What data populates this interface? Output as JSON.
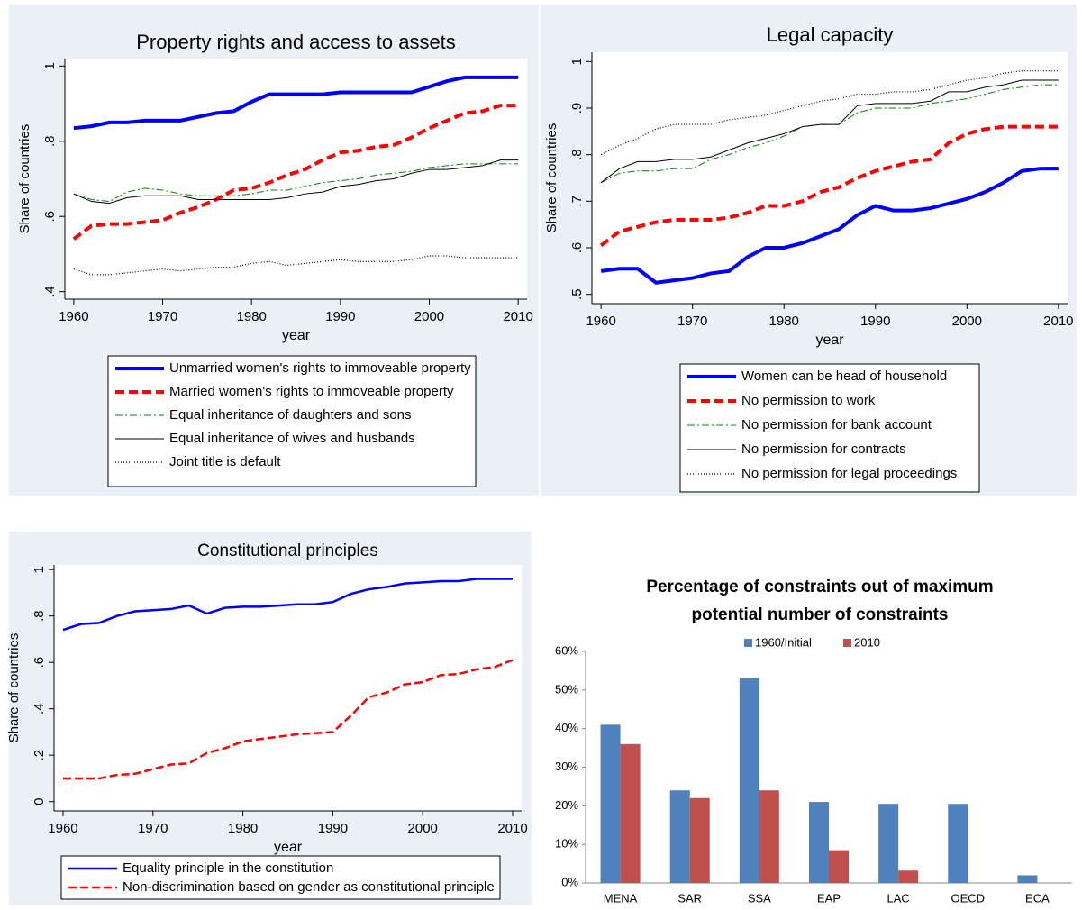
{
  "chart_data": [
    {
      "type": "line",
      "title": "Property rights and access to assets",
      "xlabel": "year",
      "ylabel": "Share of countries",
      "x": [
        1960,
        1962,
        1964,
        1966,
        1968,
        1970,
        1972,
        1974,
        1976,
        1978,
        1980,
        1982,
        1984,
        1986,
        1988,
        1990,
        1992,
        1994,
        1996,
        1998,
        2000,
        2002,
        2004,
        2006,
        2008,
        2010
      ],
      "xlim": [
        1959,
        2011
      ],
      "xticks": [
        1960,
        1970,
        1980,
        1990,
        2000,
        2010
      ],
      "ylim": [
        0.38,
        1.02
      ],
      "yticks": [
        {
          "value": 0.4,
          "label": ".4"
        },
        {
          "value": 0.6,
          "label": ".6"
        },
        {
          "value": 0.8,
          "label": ".8"
        },
        1
      ],
      "series": [
        {
          "name": "Unmarried women's rights to immoveable property",
          "color": "#0000ff",
          "style": "thick",
          "values": [
            0.835,
            0.84,
            0.85,
            0.85,
            0.855,
            0.855,
            0.855,
            0.865,
            0.875,
            0.88,
            0.905,
            0.925,
            0.925,
            0.925,
            0.925,
            0.93,
            0.93,
            0.93,
            0.93,
            0.93,
            0.945,
            0.96,
            0.97,
            0.97,
            0.97,
            0.97
          ]
        },
        {
          "name": "Married women's rights to immoveable property",
          "color": "#ff0000",
          "style": "thick-dashed",
          "values": [
            0.54,
            0.575,
            0.58,
            0.58,
            0.585,
            0.59,
            0.61,
            0.625,
            0.645,
            0.67,
            0.675,
            0.69,
            0.71,
            0.725,
            0.75,
            0.77,
            0.775,
            0.785,
            0.79,
            0.81,
            0.835,
            0.855,
            0.875,
            0.88,
            0.895,
            0.895
          ]
        },
        {
          "name": "Equal inheritance of daughters and sons",
          "color": "#008000",
          "style": "dashdot",
          "values": [
            0.66,
            0.645,
            0.64,
            0.665,
            0.675,
            0.67,
            0.66,
            0.655,
            0.655,
            0.655,
            0.66,
            0.67,
            0.67,
            0.68,
            0.69,
            0.695,
            0.7,
            0.71,
            0.715,
            0.72,
            0.73,
            0.735,
            0.74,
            0.74,
            0.74,
            0.74
          ]
        },
        {
          "name": "Equal inheritance of wives and husbands",
          "color": "#000000",
          "style": "solid",
          "values": [
            0.66,
            0.64,
            0.635,
            0.65,
            0.655,
            0.655,
            0.655,
            0.645,
            0.645,
            0.645,
            0.645,
            0.645,
            0.65,
            0.66,
            0.665,
            0.68,
            0.685,
            0.695,
            0.7,
            0.715,
            0.725,
            0.725,
            0.73,
            0.735,
            0.75,
            0.75
          ]
        },
        {
          "name": "Joint title is default",
          "color": "#000000",
          "style": "dotted",
          "values": [
            0.46,
            0.445,
            0.445,
            0.45,
            0.455,
            0.46,
            0.455,
            0.46,
            0.465,
            0.465,
            0.475,
            0.48,
            0.47,
            0.475,
            0.48,
            0.485,
            0.48,
            0.48,
            0.48,
            0.485,
            0.495,
            0.495,
            0.49,
            0.49,
            0.49,
            0.49
          ]
        }
      ]
    },
    {
      "type": "line",
      "title": "Legal capacity",
      "xlabel": "year",
      "ylabel": "Share of countries",
      "x": [
        1960,
        1962,
        1964,
        1966,
        1968,
        1970,
        1972,
        1974,
        1976,
        1978,
        1980,
        1982,
        1984,
        1986,
        1988,
        1990,
        1992,
        1994,
        1996,
        1998,
        2000,
        2002,
        2004,
        2006,
        2008,
        2010
      ],
      "xlim": [
        1959,
        2011
      ],
      "xticks": [
        1960,
        1970,
        1980,
        1990,
        2000,
        2010
      ],
      "ylim": [
        0.48,
        1.02
      ],
      "yticks": [
        {
          "value": 0.5,
          "label": ".5"
        },
        {
          "value": 0.6,
          "label": ".6"
        },
        {
          "value": 0.7,
          "label": ".7"
        },
        {
          "value": 0.8,
          "label": ".8"
        },
        {
          "value": 0.9,
          "label": ".9"
        },
        1
      ],
      "series": [
        {
          "name": "Women can be head of household",
          "color": "#0000ff",
          "style": "thick",
          "values": [
            0.55,
            0.555,
            0.555,
            0.525,
            0.53,
            0.535,
            0.545,
            0.55,
            0.58,
            0.6,
            0.6,
            0.61,
            0.625,
            0.64,
            0.67,
            0.69,
            0.68,
            0.68,
            0.685,
            0.695,
            0.705,
            0.72,
            0.74,
            0.765,
            0.77,
            0.77
          ]
        },
        {
          "name": "No permission to work",
          "color": "#ff0000",
          "style": "thick-dashed",
          "values": [
            0.605,
            0.635,
            0.645,
            0.655,
            0.66,
            0.66,
            0.66,
            0.665,
            0.675,
            0.69,
            0.69,
            0.7,
            0.72,
            0.73,
            0.75,
            0.765,
            0.775,
            0.785,
            0.79,
            0.825,
            0.845,
            0.855,
            0.86,
            0.86,
            0.86,
            0.86
          ]
        },
        {
          "name": "No permission for bank account",
          "color": "#008000",
          "style": "dashdot",
          "values": [
            0.74,
            0.76,
            0.765,
            0.765,
            0.77,
            0.77,
            0.79,
            0.8,
            0.815,
            0.825,
            0.84,
            0.86,
            0.865,
            0.865,
            0.89,
            0.9,
            0.9,
            0.9,
            0.91,
            0.915,
            0.92,
            0.93,
            0.94,
            0.945,
            0.95,
            0.95
          ]
        },
        {
          "name": "No permission for contracts",
          "color": "#000000",
          "style": "solid",
          "values": [
            0.74,
            0.77,
            0.785,
            0.785,
            0.79,
            0.79,
            0.795,
            0.81,
            0.825,
            0.835,
            0.845,
            0.86,
            0.865,
            0.865,
            0.905,
            0.91,
            0.91,
            0.91,
            0.915,
            0.935,
            0.935,
            0.945,
            0.95,
            0.96,
            0.96,
            0.96
          ]
        },
        {
          "name": "No permission for legal proceedings",
          "color": "#000000",
          "style": "dotted",
          "values": [
            0.8,
            0.82,
            0.835,
            0.855,
            0.865,
            0.865,
            0.865,
            0.875,
            0.88,
            0.885,
            0.895,
            0.905,
            0.915,
            0.92,
            0.93,
            0.93,
            0.935,
            0.935,
            0.94,
            0.95,
            0.96,
            0.965,
            0.975,
            0.98,
            0.98,
            0.98
          ]
        }
      ]
    },
    {
      "type": "line",
      "title": "Constitutional principles",
      "xlabel": "year",
      "ylabel": "Share of countries",
      "x": [
        1960,
        1962,
        1964,
        1966,
        1968,
        1970,
        1972,
        1974,
        1976,
        1978,
        1980,
        1982,
        1984,
        1986,
        1988,
        1990,
        1992,
        1994,
        1996,
        1998,
        2000,
        2002,
        2004,
        2006,
        2008,
        2010
      ],
      "xlim": [
        1959,
        2011
      ],
      "xticks": [
        1960,
        1970,
        1980,
        1990,
        2000,
        2010
      ],
      "ylim": [
        -0.04,
        1.02
      ],
      "yticks": [
        0,
        {
          "value": 0.2,
          "label": ".2"
        },
        {
          "value": 0.4,
          "label": ".4"
        },
        {
          "value": 0.6,
          "label": ".6"
        },
        {
          "value": 0.8,
          "label": ".8"
        },
        1
      ],
      "series": [
        {
          "name": "Equality principle in the constitution",
          "color": "#0000ff",
          "style": "medium",
          "values": [
            0.74,
            0.765,
            0.77,
            0.8,
            0.82,
            0.825,
            0.83,
            0.845,
            0.81,
            0.835,
            0.84,
            0.84,
            0.845,
            0.85,
            0.85,
            0.86,
            0.895,
            0.915,
            0.925,
            0.94,
            0.945,
            0.95,
            0.95,
            0.96,
            0.96,
            0.96
          ]
        },
        {
          "name": "Non-discrimination based on gender as constitutional principle",
          "color": "#ff0000",
          "style": "medium-dashed",
          "values": [
            0.1,
            0.1,
            0.1,
            0.115,
            0.12,
            0.14,
            0.16,
            0.165,
            0.21,
            0.23,
            0.26,
            0.27,
            0.28,
            0.29,
            0.295,
            0.3,
            0.37,
            0.45,
            0.47,
            0.505,
            0.515,
            0.545,
            0.55,
            0.57,
            0.58,
            0.61
          ]
        }
      ]
    },
    {
      "type": "bar",
      "title": [
        "Percentage of constraints out of maximum",
        "potential number of constraints"
      ],
      "categories": [
        "MENA",
        "SAR",
        "SSA",
        "EAP",
        "LAC",
        "OECD",
        "ECA"
      ],
      "ylim": [
        0,
        60
      ],
      "yticks": [
        {
          "value": 0,
          "label": "0%"
        },
        {
          "value": 10,
          "label": "10%"
        },
        {
          "value": 20,
          "label": "20%"
        },
        {
          "value": 30,
          "label": "30%"
        },
        {
          "value": 40,
          "label": "40%"
        },
        {
          "value": 50,
          "label": "50%"
        },
        {
          "value": 60,
          "label": "60%"
        }
      ],
      "series": [
        {
          "name": "1960/Initial",
          "color": "#4f81bd",
          "values": [
            41,
            24,
            53,
            21,
            20.5,
            20.5,
            2
          ]
        },
        {
          "name": "2010",
          "color": "#c0504d",
          "values": [
            36,
            22,
            24,
            8.5,
            3.2,
            0,
            0
          ]
        }
      ]
    }
  ]
}
